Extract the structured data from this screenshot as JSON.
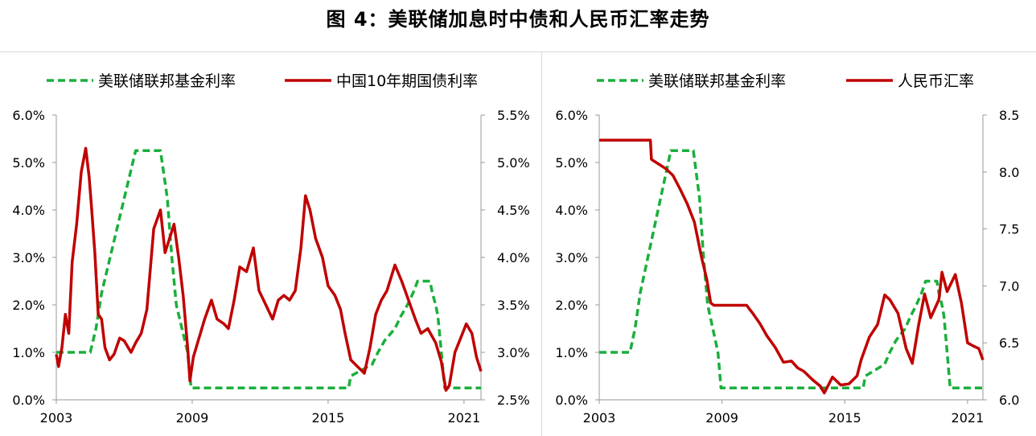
{
  "figure_title": "图 4：美联储加息时中债和人民币汇率走势",
  "colors": {
    "fed": "#1aaf3c",
    "second": "#c00000",
    "axis": "#999999"
  },
  "chart_data": [
    {
      "type": "line",
      "x_ticks": [
        "2003",
        "2009",
        "2015",
        "2021"
      ],
      "xlim": [
        2003,
        2021.75
      ],
      "left_ticks": [
        "0.0%",
        "1.0%",
        "2.0%",
        "3.0%",
        "4.0%",
        "5.0%",
        "6.0%"
      ],
      "ylim_left": [
        0,
        6
      ],
      "right_ticks": [
        "2.5%",
        "3.0%",
        "3.5%",
        "4.0%",
        "4.5%",
        "5.0%",
        "5.5%"
      ],
      "ylim_right": [
        2.5,
        5.5
      ],
      "series": [
        {
          "name": "美联储联邦基金利率",
          "axis": "left",
          "style": "dashed",
          "points": [
            [
              2003.0,
              1.0
            ],
            [
              2004.5,
              1.0
            ],
            [
              2004.75,
              1.5
            ],
            [
              2005.0,
              2.25
            ],
            [
              2005.5,
              3.25
            ],
            [
              2006.0,
              4.25
            ],
            [
              2006.5,
              5.25
            ],
            [
              2007.6,
              5.25
            ],
            [
              2007.9,
              4.25
            ],
            [
              2008.1,
              3.0
            ],
            [
              2008.3,
              2.0
            ],
            [
              2008.8,
              1.0
            ],
            [
              2008.95,
              0.25
            ],
            [
              2015.9,
              0.25
            ],
            [
              2016.0,
              0.5
            ],
            [
              2016.95,
              0.75
            ],
            [
              2017.2,
              1.0
            ],
            [
              2017.5,
              1.25
            ],
            [
              2017.95,
              1.5
            ],
            [
              2018.2,
              1.75
            ],
            [
              2018.5,
              2.0
            ],
            [
              2018.75,
              2.25
            ],
            [
              2018.95,
              2.5
            ],
            [
              2019.5,
              2.5
            ],
            [
              2019.6,
              2.25
            ],
            [
              2019.75,
              2.0
            ],
            [
              2019.85,
              1.75
            ],
            [
              2020.15,
              0.25
            ],
            [
              2021.75,
              0.25
            ]
          ]
        },
        {
          "name": "中国10年期国债利率",
          "axis": "right",
          "style": "solid",
          "points": [
            [
              2003.0,
              2.98
            ],
            [
              2003.1,
              2.85
            ],
            [
              2003.25,
              3.05
            ],
            [
              2003.4,
              3.4
            ],
            [
              2003.55,
              3.2
            ],
            [
              2003.7,
              3.95
            ],
            [
              2003.9,
              4.35
            ],
            [
              2004.1,
              4.9
            ],
            [
              2004.3,
              5.15
            ],
            [
              2004.45,
              4.85
            ],
            [
              2004.55,
              4.55
            ],
            [
              2004.7,
              4.05
            ],
            [
              2004.85,
              3.4
            ],
            [
              2005.0,
              3.35
            ],
            [
              2005.15,
              3.05
            ],
            [
              2005.35,
              2.92
            ],
            [
              2005.55,
              2.98
            ],
            [
              2005.8,
              3.15
            ],
            [
              2006.0,
              3.12
            ],
            [
              2006.3,
              3.0
            ],
            [
              2006.5,
              3.1
            ],
            [
              2006.75,
              3.2
            ],
            [
              2007.0,
              3.45
            ],
            [
              2007.3,
              4.3
            ],
            [
              2007.6,
              4.5
            ],
            [
              2007.8,
              4.05
            ],
            [
              2008.0,
              4.2
            ],
            [
              2008.2,
              4.35
            ],
            [
              2008.4,
              4.0
            ],
            [
              2008.6,
              3.6
            ],
            [
              2008.8,
              3.05
            ],
            [
              2008.9,
              2.7
            ],
            [
              2009.05,
              2.95
            ],
            [
              2009.3,
              3.15
            ],
            [
              2009.55,
              3.35
            ],
            [
              2009.85,
              3.55
            ],
            [
              2010.1,
              3.35
            ],
            [
              2010.4,
              3.3
            ],
            [
              2010.6,
              3.25
            ],
            [
              2010.85,
              3.55
            ],
            [
              2011.1,
              3.9
            ],
            [
              2011.4,
              3.85
            ],
            [
              2011.7,
              4.1
            ],
            [
              2011.95,
              3.65
            ],
            [
              2012.25,
              3.5
            ],
            [
              2012.55,
              3.35
            ],
            [
              2012.8,
              3.55
            ],
            [
              2013.05,
              3.6
            ],
            [
              2013.3,
              3.55
            ],
            [
              2013.55,
              3.65
            ],
            [
              2013.8,
              4.1
            ],
            [
              2014.0,
              4.65
            ],
            [
              2014.2,
              4.5
            ],
            [
              2014.45,
              4.2
            ],
            [
              2014.75,
              4.0
            ],
            [
              2015.0,
              3.7
            ],
            [
              2015.3,
              3.6
            ],
            [
              2015.55,
              3.45
            ],
            [
              2015.75,
              3.2
            ],
            [
              2016.0,
              2.92
            ],
            [
              2016.3,
              2.85
            ],
            [
              2016.6,
              2.78
            ],
            [
              2016.85,
              3.05
            ],
            [
              2017.1,
              3.4
            ],
            [
              2017.35,
              3.55
            ],
            [
              2017.6,
              3.65
            ],
            [
              2017.95,
              3.92
            ],
            [
              2018.25,
              3.75
            ],
            [
              2018.55,
              3.55
            ],
            [
              2018.85,
              3.35
            ],
            [
              2019.1,
              3.2
            ],
            [
              2019.4,
              3.25
            ],
            [
              2019.75,
              3.1
            ],
            [
              2020.0,
              2.9
            ],
            [
              2020.2,
              2.6
            ],
            [
              2020.35,
              2.65
            ],
            [
              2020.6,
              3.0
            ],
            [
              2020.85,
              3.15
            ],
            [
              2021.1,
              3.3
            ],
            [
              2021.35,
              3.2
            ],
            [
              2021.55,
              2.95
            ],
            [
              2021.75,
              2.8
            ]
          ]
        }
      ]
    },
    {
      "type": "line",
      "x_ticks": [
        "2003",
        "2009",
        "2015",
        "2021"
      ],
      "xlim": [
        2003,
        2021.75
      ],
      "left_ticks": [
        "0.0%",
        "1.0%",
        "2.0%",
        "3.0%",
        "4.0%",
        "5.0%",
        "6.0%"
      ],
      "ylim_left": [
        0,
        6
      ],
      "right_ticks": [
        "6.0",
        "6.5",
        "7.0",
        "7.5",
        "8.0",
        "8.5"
      ],
      "ylim_right": [
        6.0,
        8.5
      ],
      "series": [
        {
          "name": "美联储联邦基金利率",
          "axis": "left",
          "style": "dashed",
          "points": [
            [
              2003.0,
              1.0
            ],
            [
              2004.5,
              1.0
            ],
            [
              2004.75,
              1.5
            ],
            [
              2005.0,
              2.25
            ],
            [
              2005.5,
              3.25
            ],
            [
              2006.0,
              4.25
            ],
            [
              2006.5,
              5.25
            ],
            [
              2007.6,
              5.25
            ],
            [
              2007.9,
              4.25
            ],
            [
              2008.1,
              3.0
            ],
            [
              2008.3,
              2.0
            ],
            [
              2008.8,
              1.0
            ],
            [
              2008.95,
              0.25
            ],
            [
              2015.9,
              0.25
            ],
            [
              2016.0,
              0.5
            ],
            [
              2016.95,
              0.75
            ],
            [
              2017.2,
              1.0
            ],
            [
              2017.5,
              1.25
            ],
            [
              2017.95,
              1.5
            ],
            [
              2018.2,
              1.75
            ],
            [
              2018.5,
              2.0
            ],
            [
              2018.75,
              2.25
            ],
            [
              2018.95,
              2.5
            ],
            [
              2019.5,
              2.5
            ],
            [
              2019.6,
              2.25
            ],
            [
              2019.75,
              2.0
            ],
            [
              2019.85,
              1.75
            ],
            [
              2020.15,
              0.25
            ],
            [
              2021.75,
              0.25
            ]
          ]
        },
        {
          "name": "人民币汇率",
          "axis": "right",
          "style": "solid",
          "points": [
            [
              2003.0,
              8.28
            ],
            [
              2005.5,
              8.28
            ],
            [
              2005.55,
              8.11
            ],
            [
              2005.9,
              8.07
            ],
            [
              2006.25,
              8.03
            ],
            [
              2006.6,
              7.97
            ],
            [
              2006.95,
              7.85
            ],
            [
              2007.3,
              7.72
            ],
            [
              2007.65,
              7.56
            ],
            [
              2008.0,
              7.25
            ],
            [
              2008.25,
              7.06
            ],
            [
              2008.45,
              6.85
            ],
            [
              2008.6,
              6.83
            ],
            [
              2009.5,
              6.83
            ],
            [
              2010.2,
              6.83
            ],
            [
              2010.5,
              6.76
            ],
            [
              2010.85,
              6.67
            ],
            [
              2011.2,
              6.56
            ],
            [
              2011.6,
              6.46
            ],
            [
              2012.0,
              6.33
            ],
            [
              2012.4,
              6.34
            ],
            [
              2012.7,
              6.28
            ],
            [
              2013.0,
              6.25
            ],
            [
              2013.4,
              6.18
            ],
            [
              2013.8,
              6.12
            ],
            [
              2014.0,
              6.06
            ],
            [
              2014.4,
              6.2
            ],
            [
              2014.8,
              6.13
            ],
            [
              2015.2,
              6.14
            ],
            [
              2015.6,
              6.21
            ],
            [
              2015.8,
              6.35
            ],
            [
              2016.2,
              6.55
            ],
            [
              2016.6,
              6.66
            ],
            [
              2016.95,
              6.92
            ],
            [
              2017.2,
              6.88
            ],
            [
              2017.6,
              6.76
            ],
            [
              2018.0,
              6.45
            ],
            [
              2018.3,
              6.32
            ],
            [
              2018.6,
              6.65
            ],
            [
              2018.9,
              6.93
            ],
            [
              2019.2,
              6.72
            ],
            [
              2019.6,
              6.88
            ],
            [
              2019.75,
              7.12
            ],
            [
              2020.0,
              6.95
            ],
            [
              2020.4,
              7.1
            ],
            [
              2020.7,
              6.85
            ],
            [
              2021.0,
              6.5
            ],
            [
              2021.3,
              6.47
            ],
            [
              2021.55,
              6.45
            ],
            [
              2021.75,
              6.35
            ]
          ]
        }
      ]
    }
  ]
}
